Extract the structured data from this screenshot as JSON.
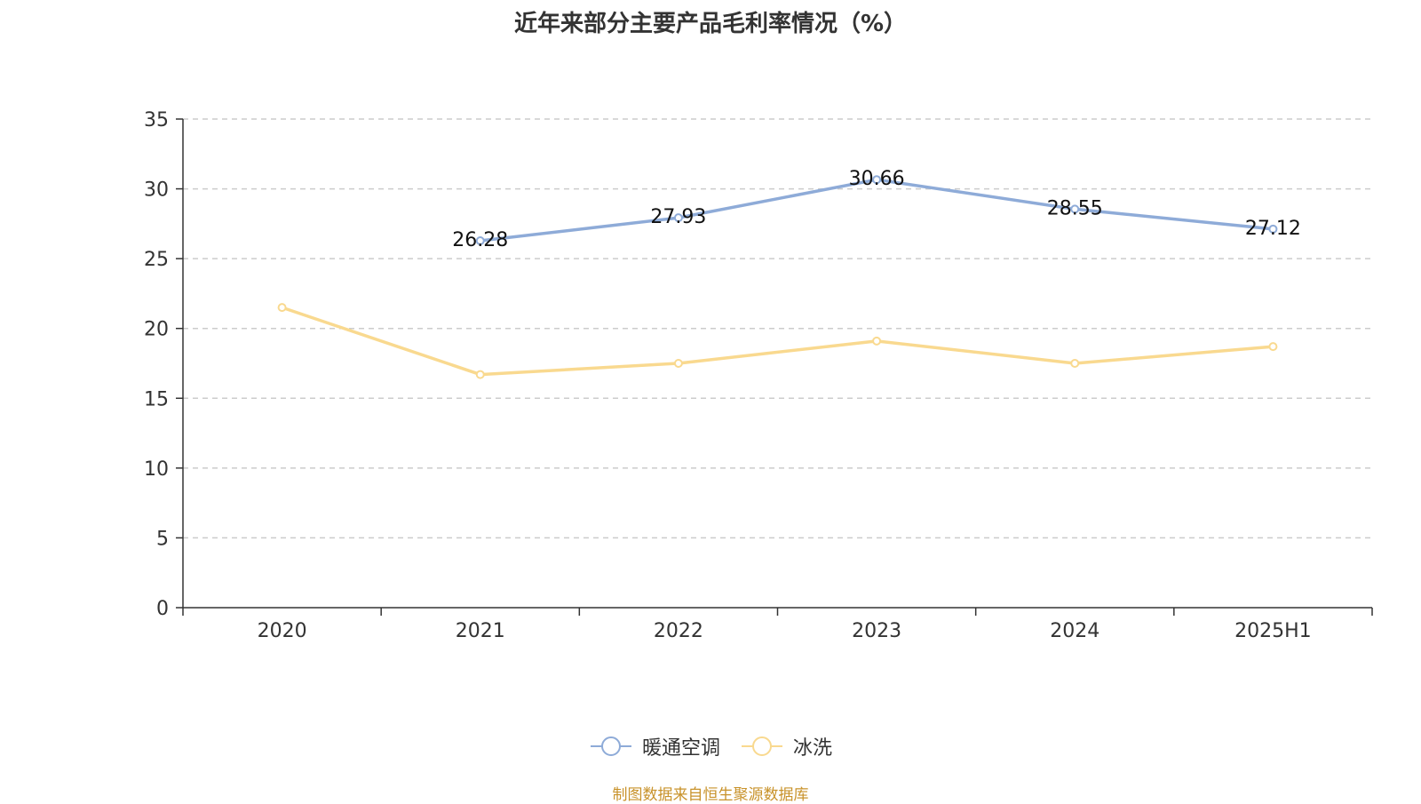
{
  "chart_data": {
    "type": "line",
    "title": "近年来部分主要产品毛利率情况（%）",
    "categories": [
      "2020",
      "2021",
      "2022",
      "2023",
      "2024",
      "2025H1"
    ],
    "ylim": [
      0,
      35
    ],
    "yticks": [
      0,
      5,
      10,
      15,
      20,
      25,
      30,
      35
    ],
    "grid": true,
    "legend_position": "bottom",
    "series": [
      {
        "name": "暖通空调",
        "color": "#8eabd8",
        "show_labels": true,
        "values": [
          null,
          26.28,
          27.93,
          30.66,
          28.55,
          27.12
        ],
        "labels": [
          null,
          "26.28",
          "27.93",
          "30.66",
          "28.55",
          "27.12"
        ]
      },
      {
        "name": "冰洗",
        "color": "#f9d98f",
        "show_labels": false,
        "values": [
          21.5,
          16.7,
          17.5,
          19.1,
          17.5,
          18.7
        ]
      }
    ]
  },
  "source_note": "制图数据来自恒生聚源数据库"
}
